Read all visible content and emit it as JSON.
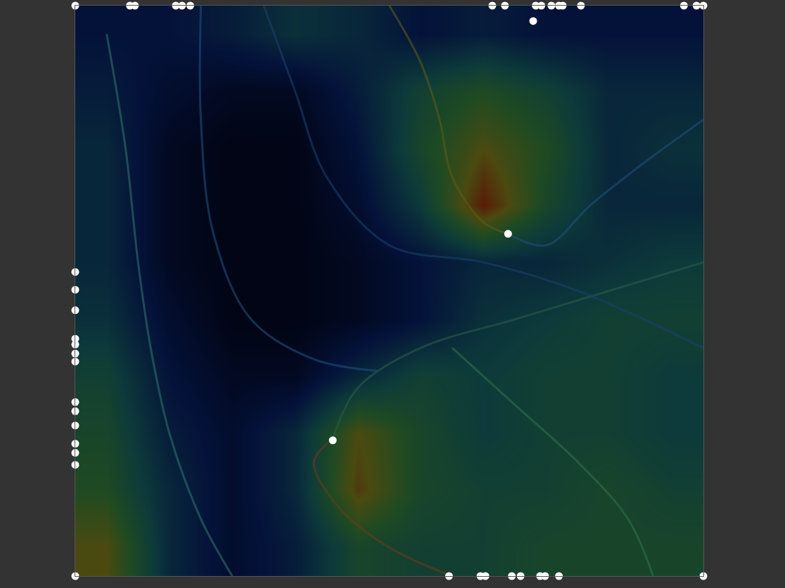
{
  "chart_data": {
    "type": "heatmap",
    "tick_labels": false,
    "grid": false,
    "xlim": [
      0,
      100
    ],
    "ylim": [
      0,
      100
    ],
    "zlim": [
      0,
      1
    ],
    "x": [
      5,
      15,
      25,
      35,
      45,
      55,
      65,
      75,
      85,
      95
    ],
    "y": [
      5,
      15,
      25,
      35,
      45,
      55,
      65,
      75,
      85,
      95
    ],
    "z": [
      [
        0.7,
        0.3,
        0.15,
        0.25,
        0.5,
        0.45,
        0.45,
        0.5,
        0.5,
        0.5
      ],
      [
        0.55,
        0.3,
        0.15,
        0.3,
        0.75,
        0.5,
        0.45,
        0.45,
        0.5,
        0.45
      ],
      [
        0.5,
        0.25,
        0.15,
        0.3,
        0.7,
        0.5,
        0.4,
        0.45,
        0.45,
        0.4
      ],
      [
        0.45,
        0.2,
        0.1,
        0.1,
        0.3,
        0.45,
        0.4,
        0.45,
        0.45,
        0.4
      ],
      [
        0.35,
        0.15,
        0.05,
        0.05,
        0.1,
        0.2,
        0.35,
        0.4,
        0.45,
        0.45
      ],
      [
        0.3,
        0.1,
        0.05,
        0.05,
        0.1,
        0.2,
        0.3,
        0.3,
        0.35,
        0.4
      ],
      [
        0.3,
        0.1,
        0.05,
        0.05,
        0.15,
        0.4,
        0.85,
        0.5,
        0.3,
        0.3
      ],
      [
        0.3,
        0.1,
        0.05,
        0.05,
        0.2,
        0.5,
        0.7,
        0.55,
        0.3,
        0.35
      ],
      [
        0.25,
        0.15,
        0.1,
        0.1,
        0.25,
        0.45,
        0.55,
        0.45,
        0.3,
        0.3
      ],
      [
        0.2,
        0.2,
        0.25,
        0.35,
        0.3,
        0.2,
        0.25,
        0.2,
        0.2,
        0.2
      ]
    ],
    "series": [
      {
        "type": "line",
        "color": "#2f6f6a",
        "x": [
          5,
          8,
          10,
          12,
          15,
          20,
          25
        ],
        "y": [
          95,
          75,
          55,
          40,
          25,
          10,
          0
        ]
      },
      {
        "type": "line",
        "color": "#1f4f7a",
        "x": [
          20,
          20,
          22,
          28,
          38,
          48
        ],
        "y": [
          100,
          80,
          60,
          45,
          38,
          36
        ]
      },
      {
        "type": "line",
        "color": "#6a3a1a",
        "x": [
          60,
          50,
          42,
          38,
          41
        ],
        "y": [
          0,
          5,
          12,
          20,
          24
        ]
      },
      {
        "type": "line",
        "color": "#2a5a4a",
        "x": [
          100,
          85,
          70,
          55,
          45,
          41
        ],
        "y": [
          55,
          50,
          45,
          40,
          33,
          24
        ]
      },
      {
        "type": "line",
        "color": "#5a5a1a",
        "x": [
          50,
          55,
          58,
          60,
          65,
          68.9
        ],
        "y": [
          100,
          90,
          80,
          70,
          62,
          60
        ]
      },
      {
        "type": "line",
        "color": "#1f4f7a",
        "x": [
          100,
          90,
          82,
          75,
          68.9
        ],
        "y": [
          80,
          72,
          65,
          58,
          60
        ]
      },
      {
        "type": "line",
        "color": "#2f6f4a",
        "x": [
          60,
          70,
          80,
          88,
          92
        ],
        "y": [
          40,
          30,
          20,
          10,
          0
        ]
      },
      {
        "type": "line",
        "color": "#1a3f6a",
        "x": [
          30,
          35,
          40,
          50,
          65,
          80,
          100
        ],
        "y": [
          100,
          85,
          70,
          58,
          55,
          50,
          40
        ]
      },
      {
        "type": "scatter",
        "color": "#ffffff",
        "marker": "circle",
        "x": [
          0,
          8.7,
          9.5,
          16,
          17,
          18.3,
          66.4,
          68.4,
          73.3,
          74.2,
          75.8,
          77,
          77.6,
          80.5,
          96.9,
          98.9,
          100,
          72.9,
          0,
          0,
          0,
          0,
          0,
          0,
          0,
          0,
          0,
          0,
          0,
          0,
          0,
          0,
          59.5,
          64.5,
          65.3,
          69.5,
          70.9,
          74,
          74.8,
          77,
          100,
          68.9,
          41
        ],
        "y": [
          100,
          100,
          100,
          100,
          100,
          100,
          100,
          100,
          100,
          100,
          100,
          100,
          100,
          100,
          100,
          100,
          100,
          97.3,
          53.3,
          50.2,
          46.6,
          41.6,
          40.6,
          39,
          37.6,
          30.5,
          28.9,
          26.4,
          23.2,
          21.6,
          19.5,
          0,
          0,
          0,
          0,
          0,
          0,
          0,
          0,
          0,
          0,
          60,
          23.8
        ]
      }
    ]
  }
}
